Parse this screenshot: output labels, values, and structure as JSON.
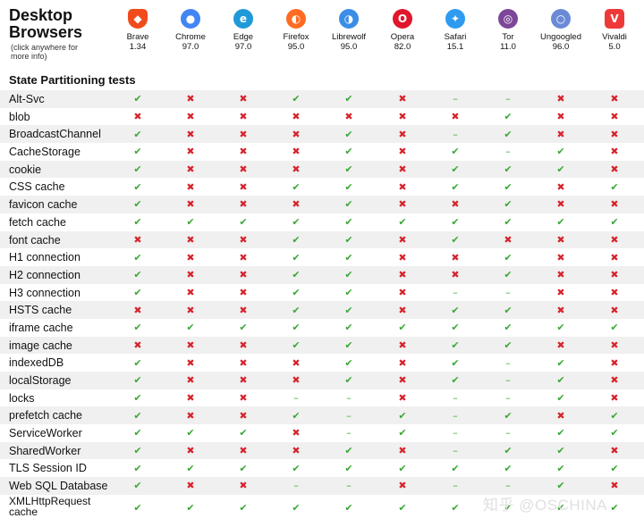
{
  "header": {
    "title": "Desktop\nBrowsers",
    "note": "(click anywhere for more info)"
  },
  "browsers": [
    {
      "name": "Brave",
      "version": "1.34",
      "icon": "brave-icon",
      "color": "#f04a1d",
      "glyph": "◆"
    },
    {
      "name": "Chrome",
      "version": "97.0",
      "icon": "chrome-icon",
      "color": "#4285f4",
      "glyph": "●"
    },
    {
      "name": "Edge",
      "version": "97.0",
      "icon": "edge-icon",
      "color": "#1f9ad9",
      "glyph": "e"
    },
    {
      "name": "Firefox",
      "version": "95.0",
      "icon": "firefox-icon",
      "color": "#ff6b22",
      "glyph": "◐"
    },
    {
      "name": "Librewolf",
      "version": "95.0",
      "icon": "librewolf-icon",
      "color": "#3a8ee6",
      "glyph": "◑"
    },
    {
      "name": "Opera",
      "version": "82.0",
      "icon": "opera-icon",
      "color": "#e0162b",
      "glyph": "O"
    },
    {
      "name": "Safari",
      "version": "15.1",
      "icon": "safari-icon",
      "color": "#2f9bf0",
      "glyph": "✦"
    },
    {
      "name": "Tor",
      "version": "11.0",
      "icon": "tor-icon",
      "color": "#7d4698",
      "glyph": "◎"
    },
    {
      "name": "Ungoogled",
      "version": "96.0",
      "icon": "ungoogled-icon",
      "color": "#6b8ad6",
      "glyph": "○"
    },
    {
      "name": "Vivaldi",
      "version": "5.0",
      "icon": "vivaldi-icon",
      "color": "#ef3939",
      "glyph": "V"
    }
  ],
  "section_title": "State Partitioning tests",
  "rows": [
    {
      "label": "Alt-Svc",
      "results": [
        "p",
        "f",
        "f",
        "p",
        "p",
        "f",
        "n",
        "n",
        "f",
        "f"
      ]
    },
    {
      "label": "blob",
      "results": [
        "f",
        "f",
        "f",
        "f",
        "f",
        "f",
        "f",
        "p",
        "f",
        "f"
      ]
    },
    {
      "label": "BroadcastChannel",
      "results": [
        "p",
        "f",
        "f",
        "f",
        "p",
        "f",
        "n",
        "p",
        "f",
        "f"
      ]
    },
    {
      "label": "CacheStorage",
      "results": [
        "p",
        "f",
        "f",
        "f",
        "p",
        "f",
        "p",
        "n",
        "p",
        "f"
      ]
    },
    {
      "label": "cookie",
      "results": [
        "p",
        "f",
        "f",
        "f",
        "p",
        "f",
        "p",
        "p",
        "p",
        "f"
      ]
    },
    {
      "label": "CSS cache",
      "results": [
        "p",
        "f",
        "f",
        "p",
        "p",
        "f",
        "p",
        "p",
        "f",
        "p"
      ]
    },
    {
      "label": "favicon cache",
      "results": [
        "p",
        "f",
        "f",
        "f",
        "p",
        "f",
        "f",
        "p",
        "f",
        "f"
      ]
    },
    {
      "label": "fetch cache",
      "results": [
        "p",
        "p",
        "p",
        "p",
        "p",
        "p",
        "p",
        "p",
        "p",
        "p"
      ]
    },
    {
      "label": "font cache",
      "results": [
        "f",
        "f",
        "f",
        "p",
        "p",
        "f",
        "p",
        "f",
        "f",
        "f"
      ]
    },
    {
      "label": "H1 connection",
      "results": [
        "p",
        "f",
        "f",
        "p",
        "p",
        "f",
        "f",
        "p",
        "f",
        "f"
      ]
    },
    {
      "label": "H2 connection",
      "results": [
        "p",
        "f",
        "f",
        "p",
        "p",
        "f",
        "f",
        "p",
        "f",
        "f"
      ]
    },
    {
      "label": "H3 connection",
      "results": [
        "p",
        "f",
        "f",
        "p",
        "p",
        "f",
        "n",
        "n",
        "f",
        "f"
      ]
    },
    {
      "label": "HSTS cache",
      "results": [
        "f",
        "f",
        "f",
        "p",
        "p",
        "f",
        "p",
        "p",
        "f",
        "f"
      ]
    },
    {
      "label": "iframe cache",
      "results": [
        "p",
        "p",
        "p",
        "p",
        "p",
        "p",
        "p",
        "p",
        "p",
        "p"
      ]
    },
    {
      "label": "image cache",
      "results": [
        "f",
        "f",
        "f",
        "p",
        "p",
        "f",
        "p",
        "p",
        "f",
        "f"
      ]
    },
    {
      "label": "indexedDB",
      "results": [
        "p",
        "f",
        "f",
        "f",
        "p",
        "f",
        "p",
        "n",
        "p",
        "f"
      ]
    },
    {
      "label": "localStorage",
      "results": [
        "p",
        "f",
        "f",
        "f",
        "p",
        "f",
        "p",
        "n",
        "p",
        "f"
      ]
    },
    {
      "label": "locks",
      "results": [
        "p",
        "f",
        "f",
        "n",
        "n",
        "f",
        "n",
        "n",
        "p",
        "f"
      ]
    },
    {
      "label": "prefetch cache",
      "results": [
        "p",
        "f",
        "f",
        "p",
        "n",
        "p",
        "n",
        "p",
        "f",
        "p"
      ]
    },
    {
      "label": "ServiceWorker",
      "results": [
        "p",
        "p",
        "p",
        "f",
        "n",
        "p",
        "n",
        "n",
        "p",
        "p"
      ]
    },
    {
      "label": "SharedWorker",
      "results": [
        "p",
        "f",
        "f",
        "f",
        "p",
        "f",
        "n",
        "p",
        "p",
        "f"
      ]
    },
    {
      "label": "TLS Session ID",
      "results": [
        "p",
        "p",
        "p",
        "p",
        "p",
        "p",
        "p",
        "p",
        "p",
        "p"
      ]
    },
    {
      "label": "Web SQL Database",
      "results": [
        "p",
        "f",
        "f",
        "n",
        "n",
        "f",
        "n",
        "n",
        "p",
        "f"
      ]
    },
    {
      "label": "XMLHttpRequest\ncache",
      "results": [
        "p",
        "p",
        "p",
        "p",
        "p",
        "p",
        "p",
        "p",
        "p",
        "p"
      ]
    }
  ],
  "symbols": {
    "p": "✔",
    "f": "✖",
    "n": "–"
  },
  "colors": {
    "pass": "#3aa835",
    "fail": "#d6242d",
    "alt_row": "#f0f0f0"
  },
  "watermark": "知乎 @OSCHINA"
}
